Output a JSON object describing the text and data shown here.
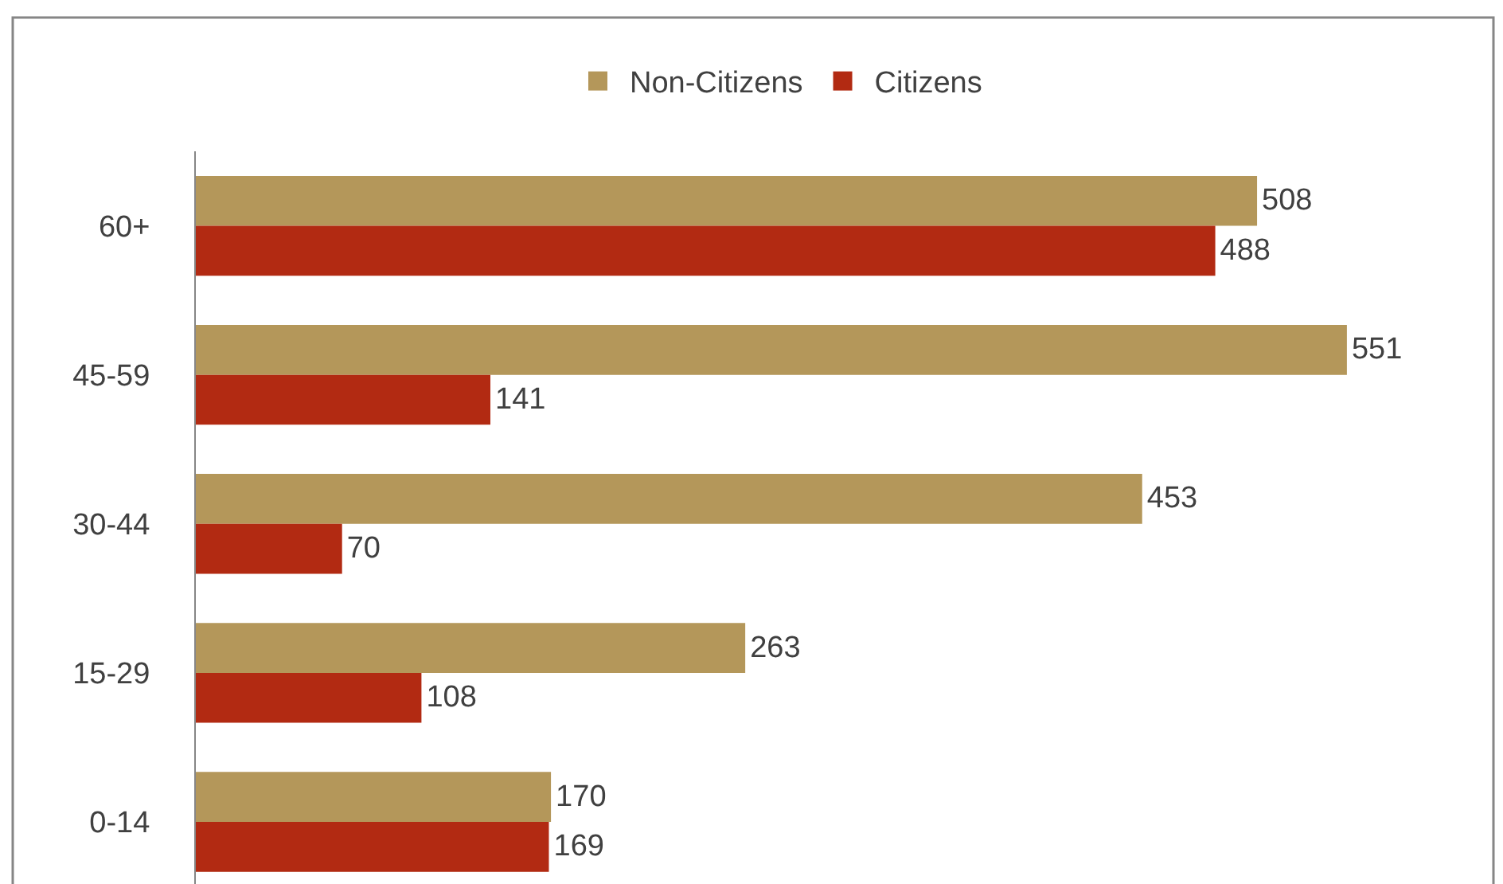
{
  "chart_data": {
    "type": "bar",
    "orientation": "horizontal",
    "categories": [
      "60+",
      "45-59",
      "30-44",
      "15-29",
      "0-14"
    ],
    "series": [
      {
        "name": "Non-Citizens",
        "color": "#b4975a",
        "values": [
          508,
          551,
          453,
          263,
          170
        ]
      },
      {
        "name": "Citizens",
        "color": "#b22a12",
        "values": [
          488,
          141,
          70,
          108,
          169
        ]
      }
    ],
    "data_labels": true,
    "legend": "top",
    "tick_labels": "y"
  }
}
